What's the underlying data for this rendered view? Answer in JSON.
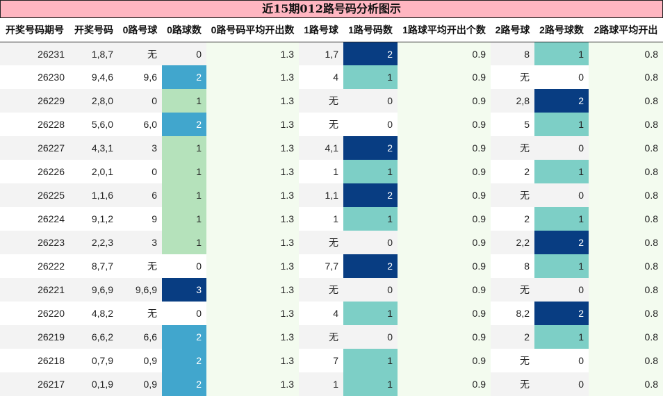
{
  "title": "近15期012路号码分析图示",
  "headers": [
    "开奖号码期号",
    "开奖号码",
    "0路号球",
    "0路球数",
    "0路号码平均开出数",
    "1路号球",
    "1路号码数",
    "1路球平均开出个数",
    "2路号球",
    "2路号球数",
    "2路球平均开出"
  ],
  "rows": [
    [
      "26231",
      "1,8,7",
      "无",
      "0",
      "1.3",
      "1,7",
      "2",
      "0.9",
      "8",
      "1",
      "0.8"
    ],
    [
      "26230",
      "9,4,6",
      "9,6",
      "2",
      "1.3",
      "4",
      "1",
      "0.9",
      "无",
      "0",
      "0.8"
    ],
    [
      "26229",
      "2,8,0",
      "0",
      "1",
      "1.3",
      "无",
      "0",
      "0.9",
      "2,8",
      "2",
      "0.8"
    ],
    [
      "26228",
      "5,6,0",
      "6,0",
      "2",
      "1.3",
      "无",
      "0",
      "0.9",
      "5",
      "1",
      "0.8"
    ],
    [
      "26227",
      "4,3,1",
      "3",
      "1",
      "1.3",
      "4,1",
      "2",
      "0.9",
      "无",
      "0",
      "0.8"
    ],
    [
      "26226",
      "2,0,1",
      "0",
      "1",
      "1.3",
      "1",
      "1",
      "0.9",
      "2",
      "1",
      "0.8"
    ],
    [
      "26225",
      "1,1,6",
      "6",
      "1",
      "1.3",
      "1,1",
      "2",
      "0.9",
      "无",
      "0",
      "0.8"
    ],
    [
      "26224",
      "9,1,2",
      "9",
      "1",
      "1.3",
      "1",
      "1",
      "0.9",
      "2",
      "1",
      "0.8"
    ],
    [
      "26223",
      "2,2,3",
      "3",
      "1",
      "1.3",
      "无",
      "0",
      "0.9",
      "2,2",
      "2",
      "0.8"
    ],
    [
      "26222",
      "8,7,7",
      "无",
      "0",
      "1.3",
      "7,7",
      "2",
      "0.9",
      "8",
      "1",
      "0.8"
    ],
    [
      "26221",
      "9,6,9",
      "9,6,9",
      "3",
      "1.3",
      "无",
      "0",
      "0.9",
      "无",
      "0",
      "0.8"
    ],
    [
      "26220",
      "4,8,2",
      "无",
      "0",
      "1.3",
      "4",
      "1",
      "0.9",
      "8,2",
      "2",
      "0.8"
    ],
    [
      "26219",
      "6,6,2",
      "6,6",
      "2",
      "1.3",
      "无",
      "0",
      "0.9",
      "2",
      "1",
      "0.8"
    ],
    [
      "26218",
      "0,7,9",
      "0,9",
      "2",
      "1.3",
      "7",
      "1",
      "0.9",
      "无",
      "0",
      "0.8"
    ],
    [
      "26217",
      "0,1,9",
      "0,9",
      "2",
      "1.3",
      "1",
      "1",
      "0.9",
      "无",
      "0",
      "0.8"
    ]
  ],
  "colors": {
    "title_bg": "#ffb6c1",
    "zero_count_1": "#b5e2bb",
    "zero_count_2": "#41a6cd",
    "zero_count_3": "#083d82",
    "other_count_1": "#7dcfc6",
    "other_count_2": "#083d82",
    "avg_column_bg": "#f3fbef"
  }
}
